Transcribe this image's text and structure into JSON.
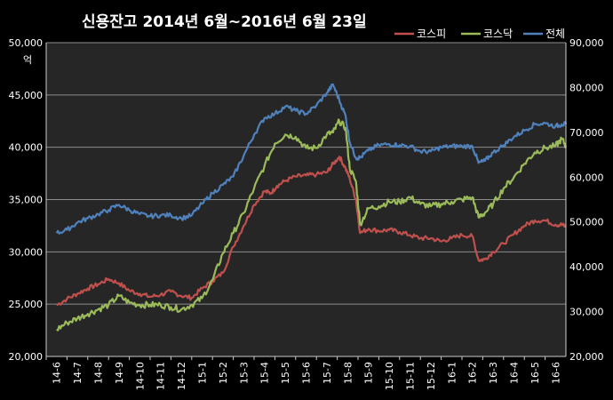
{
  "chart_data": {
    "type": "line",
    "title": "신용잔고 2014년 6월~2016년 6월 23일",
    "y_unit": "억",
    "y_left": {
      "ticks": [
        "20,000",
        "25,000",
        "30,000",
        "35,000",
        "40,000",
        "45,000",
        "50,000"
      ],
      "range": [
        20000,
        50000
      ]
    },
    "y_right": {
      "ticks": [
        "20,000",
        "30,000",
        "40,000",
        "50,000",
        "60,000",
        "70,000",
        "80,000",
        "90,000"
      ],
      "range": [
        20000,
        90000
      ]
    },
    "x_labels": [
      "14-6",
      "14-7",
      "14-8",
      "14-9",
      "14-10",
      "14-11",
      "14-12",
      "15-1",
      "15-2",
      "15-3",
      "15-4",
      "15-5",
      "15-6",
      "15-7",
      "15-8",
      "15-9",
      "15-10",
      "15-11",
      "15-12",
      "16-1",
      "16-2",
      "16-3",
      "16-4",
      "16-5",
      "16-6"
    ],
    "grid": true,
    "legend_position": "top-right",
    "series": [
      {
        "name": "코스피",
        "color": "#c0504d",
        "axis": "left",
        "x": [
          0,
          0.5,
          1,
          1.5,
          2,
          2.5,
          3,
          3.5,
          4,
          4.5,
          5,
          5.5,
          6,
          6.5,
          7,
          7.5,
          8,
          8.5,
          9,
          9.5,
          10,
          10.3,
          10.6,
          11,
          11.5,
          12,
          12.5,
          13,
          13.3,
          13.6,
          13.9,
          14.1,
          14.4,
          14.6,
          15,
          15.5,
          16,
          16.5,
          17,
          17.5,
          18,
          18.5,
          19,
          19.5,
          20,
          20.3,
          20.6,
          21,
          21.5,
          22,
          22.5,
          23,
          23.5,
          24,
          24.3,
          24.5
        ],
        "values": [
          24900,
          25500,
          26000,
          26500,
          26900,
          27400,
          27000,
          26300,
          26000,
          25700,
          25900,
          26200,
          25800,
          25600,
          26500,
          27200,
          28000,
          30500,
          32500,
          34500,
          35800,
          35600,
          36300,
          36800,
          37200,
          37300,
          37400,
          37600,
          38400,
          39100,
          38000,
          37000,
          35000,
          31800,
          32200,
          32000,
          32100,
          31900,
          31600,
          31300,
          31300,
          31000,
          31300,
          31600,
          31500,
          29200,
          29300,
          30000,
          30800,
          31700,
          32500,
          33000,
          33000,
          32600,
          32600,
          32400
        ]
      },
      {
        "name": "코스닥",
        "color": "#9bbb59",
        "axis": "right",
        "x": [
          0,
          0.5,
          1,
          1.5,
          2,
          2.5,
          3,
          3.5,
          4,
          4.5,
          5,
          5.5,
          6,
          6.5,
          7,
          7.5,
          8,
          8.5,
          9,
          9.5,
          10,
          10.5,
          11,
          11.5,
          12,
          12.5,
          13,
          13.3,
          13.6,
          13.9,
          14.1,
          14.4,
          14.6,
          15,
          15.5,
          16,
          16.5,
          17,
          17.5,
          18,
          18.5,
          19,
          19.5,
          20,
          20.3,
          20.6,
          21,
          21.5,
          22,
          22.5,
          23,
          23.5,
          24,
          24.3,
          24.5
        ],
        "values": [
          26000,
          27500,
          28500,
          29500,
          30500,
          31500,
          33500,
          32000,
          31500,
          31500,
          31500,
          31000,
          30500,
          31500,
          33000,
          37000,
          43000,
          47500,
          52000,
          57500,
          62500,
          67500,
          69500,
          69000,
          66500,
          66500,
          69500,
          70000,
          72500,
          71000,
          62000,
          59000,
          49500,
          53000,
          53500,
          54500,
          54500,
          55500,
          54000,
          53500,
          54000,
          54500,
          55000,
          55500,
          51000,
          52000,
          54000,
          57500,
          60000,
          63000,
          65500,
          66500,
          67000,
          68500,
          67000
        ]
      },
      {
        "name": "전체",
        "color": "#4f81bd",
        "axis": "left",
        "x": [
          0,
          0.5,
          1,
          1.5,
          2,
          2.5,
          3,
          3.5,
          4,
          4.5,
          5,
          5.5,
          6,
          6.5,
          7,
          7.5,
          8,
          8.5,
          9,
          9.5,
          10,
          10.5,
          11,
          11.5,
          12,
          12.5,
          13,
          13.3,
          13.6,
          13.9,
          14.1,
          14.4,
          14.6,
          15,
          15.5,
          16,
          16.5,
          17,
          17.5,
          18,
          18.5,
          19,
          19.5,
          20,
          20.3,
          20.6,
          21,
          21.5,
          22,
          22.5,
          23,
          23.5,
          24,
          24.3,
          24.5
        ],
        "values": [
          31800,
          32100,
          32800,
          33200,
          33600,
          34000,
          34500,
          34000,
          33600,
          33400,
          33500,
          33500,
          33200,
          33500,
          34600,
          35600,
          36400,
          37200,
          39200,
          41200,
          42800,
          43200,
          43900,
          43500,
          43200,
          44000,
          45200,
          46000,
          44500,
          43000,
          40500,
          39000,
          39000,
          39700,
          40200,
          40300,
          40200,
          40100,
          39600,
          39600,
          40000,
          40100,
          40100,
          40100,
          38500,
          38700,
          39500,
          40200,
          41000,
          41600,
          42200,
          42300,
          42000,
          42200,
          42200
        ]
      }
    ]
  }
}
